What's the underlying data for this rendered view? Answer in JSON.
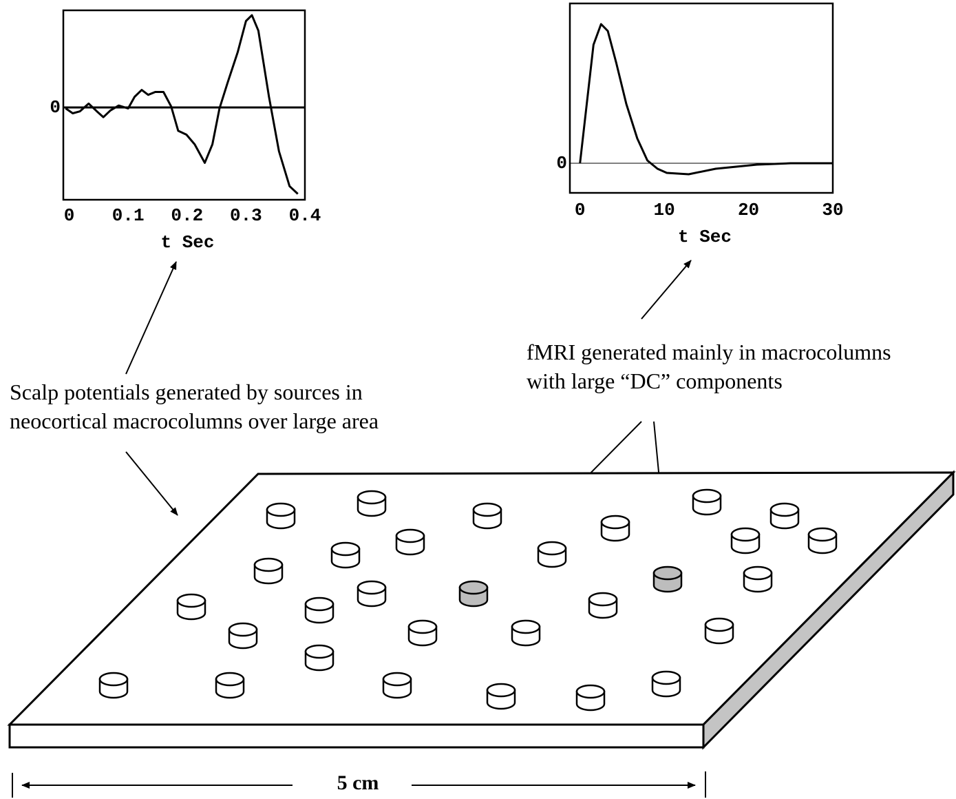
{
  "chart_data": [
    {
      "type": "line",
      "xlabel": "t Sec",
      "color": "#000000",
      "grid": true,
      "x": [
        -0.006,
        0.006,
        0.018,
        0.033,
        0.047,
        0.058,
        0.07,
        0.084,
        0.1,
        0.111,
        0.123,
        0.134,
        0.146,
        0.16,
        0.173,
        0.185,
        0.199,
        0.213,
        0.23,
        0.243,
        0.255,
        0.269,
        0.286,
        0.3,
        0.31,
        0.321,
        0.339,
        0.356,
        0.374,
        0.388
      ],
      "values": [
        -0.01,
        -0.06,
        -0.04,
        0.04,
        -0.04,
        -0.1,
        -0.03,
        0.02,
        -0.01,
        0.11,
        0.18,
        0.13,
        0.16,
        0.16,
        0.01,
        -0.24,
        -0.28,
        -0.38,
        -0.57,
        -0.38,
        -0.01,
        0.26,
        0.57,
        0.89,
        0.95,
        0.79,
        0.11,
        -0.45,
        -0.81,
        -0.89
      ],
      "xlim": [
        -0.01,
        0.4
      ],
      "ylim": [
        -0.95,
        1
      ],
      "xticks": [
        0,
        0.1,
        0.2,
        0.3,
        0.4
      ],
      "yticks": [
        0
      ]
    },
    {
      "type": "line",
      "xlabel": "t Sec",
      "color": "#000000",
      "grid": true,
      "x": [
        0,
        0.8,
        1.6,
        2.5,
        3.3,
        4.3,
        5.5,
        6.8,
        8,
        9.2,
        10.3,
        12.9,
        16.1,
        21,
        25,
        30
      ],
      "values": [
        0,
        0.43,
        0.86,
        1.01,
        0.96,
        0.73,
        0.43,
        0.18,
        0.02,
        -0.04,
        -0.07,
        -0.08,
        -0.04,
        -0.01,
        0,
        0
      ],
      "xlim": [
        -1.2,
        30
      ],
      "ylim": [
        -0.215,
        1.16
      ],
      "xticks": [
        0,
        10,
        20,
        30
      ],
      "yticks": [
        0
      ]
    }
  ],
  "annotations": {
    "scalp": [
      "Scalp potentials generated by sources in",
      "neocortical macrocolumns over large area"
    ],
    "fmri": [
      "fMRI generated mainly in macrocolumns",
      "with large “DC” components"
    ],
    "scale": "5 cm"
  }
}
